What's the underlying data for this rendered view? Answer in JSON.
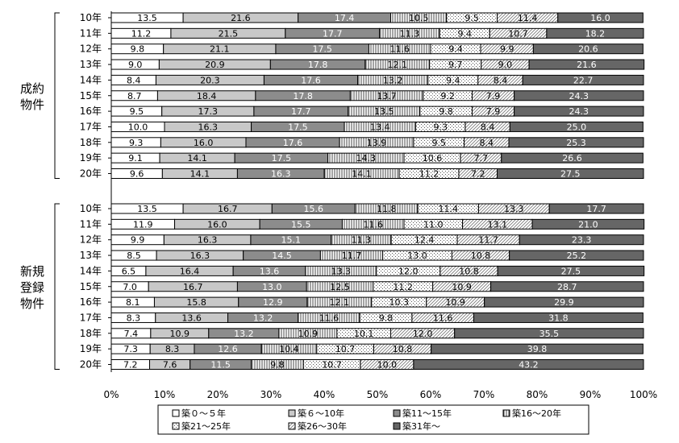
{
  "chart_data": {
    "type": "bar",
    "orientation": "horizontal",
    "stacked": "percent",
    "xlim": [
      0,
      100
    ],
    "x_ticks": [
      "0%",
      "10%",
      "20%",
      "30%",
      "40%",
      "50%",
      "60%",
      "70%",
      "80%",
      "90%",
      "100%"
    ],
    "legend_position": "bottom",
    "series": [
      {
        "name": "築０～５年",
        "color": "#ffffff",
        "pattern": "none"
      },
      {
        "name": "築６～10年",
        "color": "#c8c8c8",
        "pattern": "none"
      },
      {
        "name": "築11～15年",
        "color": "#8c8c8c",
        "pattern": "none"
      },
      {
        "name": "築16～20年",
        "color": "#ffffff",
        "pattern": "vertical-lines"
      },
      {
        "name": "築21～25年",
        "color": "#ffffff",
        "pattern": "dots"
      },
      {
        "name": "築26～30年",
        "color": "#ffffff",
        "pattern": "diagonal"
      },
      {
        "name": "築31年～",
        "color": "#666666",
        "pattern": "none"
      }
    ],
    "groups": [
      {
        "label": "成約\n物件",
        "label_lines": [
          "成約",
          "物件"
        ],
        "rows": [
          {
            "year": "10年",
            "values": [
              13.5,
              21.6,
              17.4,
              10.5,
              9.5,
              11.4,
              16.0
            ]
          },
          {
            "year": "11年",
            "values": [
              11.2,
              21.5,
              17.7,
              11.3,
              9.4,
              10.7,
              18.2
            ]
          },
          {
            "year": "12年",
            "values": [
              9.8,
              21.1,
              17.5,
              11.6,
              9.4,
              9.9,
              20.6
            ]
          },
          {
            "year": "13年",
            "values": [
              9.0,
              20.9,
              17.8,
              12.1,
              9.7,
              9.0,
              21.6
            ]
          },
          {
            "year": "14年",
            "values": [
              8.4,
              20.3,
              17.6,
              13.2,
              9.4,
              8.4,
              22.7
            ]
          },
          {
            "year": "15年",
            "values": [
              8.7,
              18.4,
              17.8,
              13.7,
              9.2,
              7.9,
              24.3
            ]
          },
          {
            "year": "16年",
            "values": [
              9.5,
              17.3,
              17.7,
              13.5,
              9.8,
              7.9,
              24.3
            ]
          },
          {
            "year": "17年",
            "values": [
              10.0,
              16.3,
              17.5,
              13.4,
              9.3,
              8.4,
              25.0
            ]
          },
          {
            "year": "18年",
            "values": [
              9.3,
              16.0,
              17.6,
              13.9,
              9.5,
              8.4,
              25.3
            ]
          },
          {
            "year": "19年",
            "values": [
              9.1,
              14.1,
              17.5,
              14.3,
              10.6,
              7.7,
              26.6
            ]
          },
          {
            "year": "20年",
            "values": [
              9.6,
              14.1,
              16.3,
              14.1,
              11.2,
              7.2,
              27.5
            ]
          }
        ]
      },
      {
        "label": "新規\n登録\n物件",
        "label_lines": [
          "新規",
          "登録",
          "物件"
        ],
        "rows": [
          {
            "year": "10年",
            "values": [
              13.5,
              16.7,
              15.6,
              11.8,
              11.4,
              13.3,
              17.7
            ]
          },
          {
            "year": "11年",
            "values": [
              11.9,
              16.0,
              15.5,
              11.6,
              11.0,
              13.1,
              21.0
            ]
          },
          {
            "year": "12年",
            "values": [
              9.9,
              16.3,
              15.1,
              11.3,
              12.4,
              11.7,
              23.3
            ]
          },
          {
            "year": "13年",
            "values": [
              8.5,
              16.3,
              14.5,
              11.7,
              13.0,
              10.8,
              25.2
            ]
          },
          {
            "year": "14年",
            "values": [
              6.5,
              16.4,
              13.6,
              13.3,
              12.0,
              10.8,
              27.5
            ]
          },
          {
            "year": "15年",
            "values": [
              7.0,
              16.7,
              13.0,
              12.5,
              11.2,
              10.9,
              28.7
            ]
          },
          {
            "year": "16年",
            "values": [
              8.1,
              15.8,
              12.9,
              12.1,
              10.3,
              10.9,
              29.9
            ]
          },
          {
            "year": "17年",
            "values": [
              8.3,
              13.6,
              13.2,
              11.6,
              9.8,
              11.6,
              31.8
            ]
          },
          {
            "year": "18年",
            "values": [
              7.4,
              10.9,
              13.2,
              10.9,
              10.1,
              12.0,
              35.5
            ]
          },
          {
            "year": "19年",
            "values": [
              7.3,
              8.3,
              12.6,
              10.4,
              10.7,
              10.8,
              39.8
            ]
          },
          {
            "year": "20年",
            "values": [
              7.2,
              7.6,
              11.5,
              9.8,
              10.7,
              10.0,
              43.2
            ]
          }
        ]
      }
    ]
  }
}
